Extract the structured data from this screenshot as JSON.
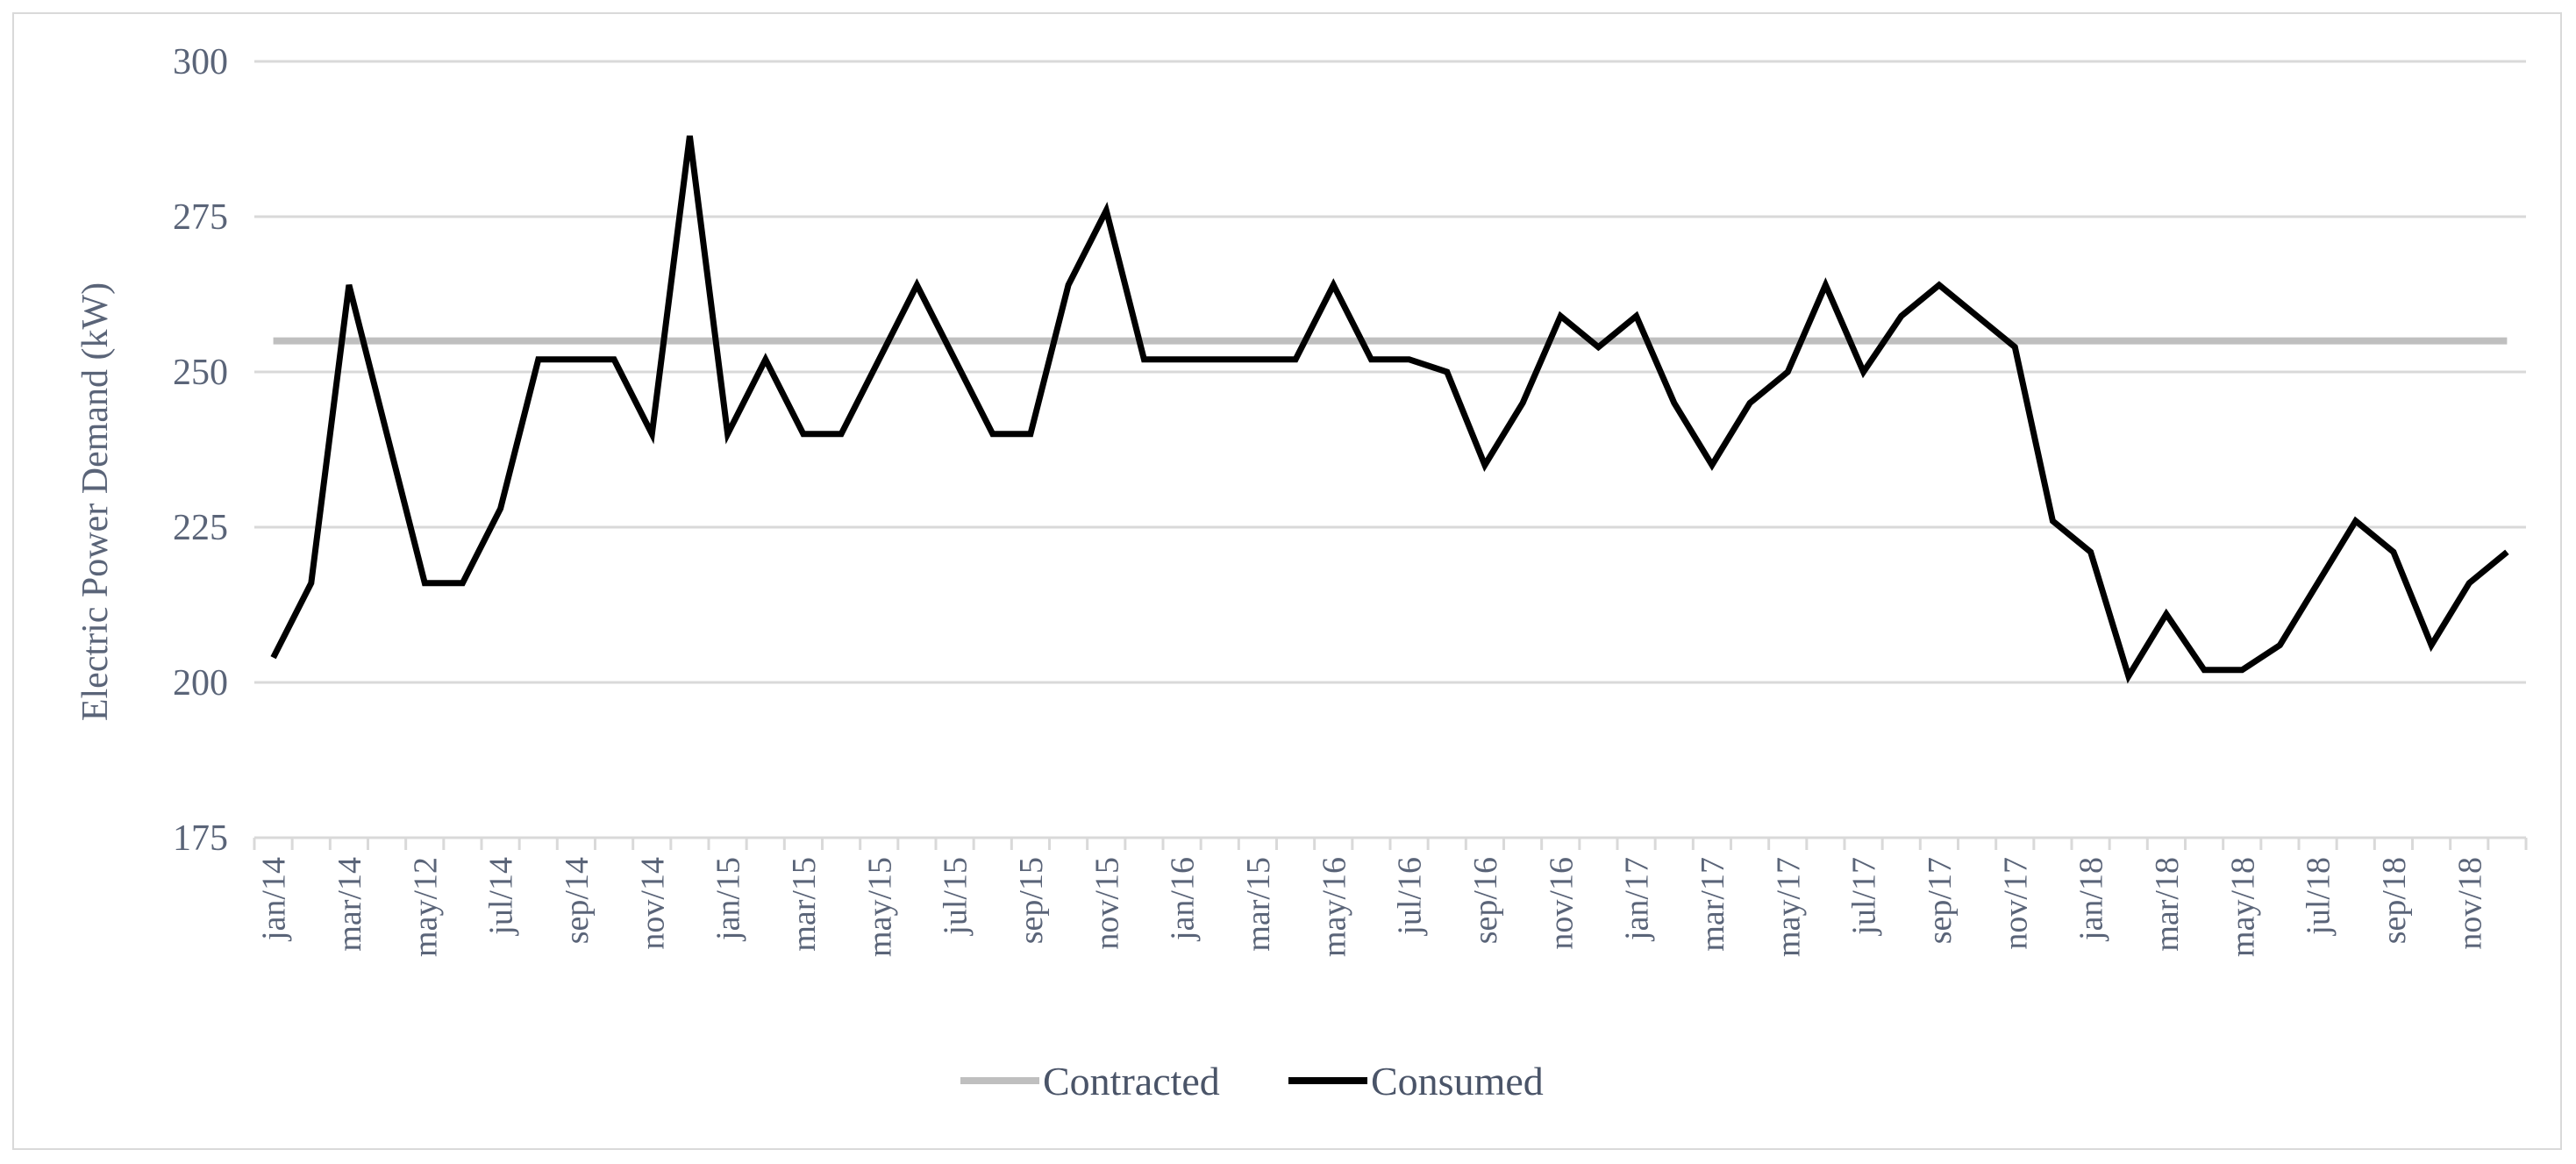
{
  "chart_data": {
    "type": "line",
    "title": "",
    "ylabel": "Electric Power Demand (kW)",
    "xlabel": "",
    "ylim": [
      175,
      300
    ],
    "yticks": [
      175,
      200,
      225,
      250,
      275,
      300
    ],
    "grid": true,
    "legend_position": "bottom",
    "x_count": 60,
    "x_tick_labels": [
      "jan/14",
      "mar/14",
      "may/12",
      "jul/14",
      "sep/14",
      "nov/14",
      "jan/15",
      "mar/15",
      "may/15",
      "jul/15",
      "sep/15",
      "nov/15",
      "jan/16",
      "mar/15",
      "may/16",
      "jul/16",
      "sep/16",
      "nov/16",
      "jan/17",
      "mar/17",
      "may/17",
      "jul/17",
      "sep/17",
      "nov/17",
      "jan/18",
      "mar/18",
      "may/18",
      "jul/18",
      "sep/18",
      "nov/18"
    ],
    "series": [
      {
        "name": "Contracted",
        "color": "#bfbfbf",
        "values": [
          255,
          255,
          255,
          255,
          255,
          255,
          255,
          255,
          255,
          255,
          255,
          255,
          255,
          255,
          255,
          255,
          255,
          255,
          255,
          255,
          255,
          255,
          255,
          255,
          255,
          255,
          255,
          255,
          255,
          255,
          255,
          255,
          255,
          255,
          255,
          255,
          255,
          255,
          255,
          255,
          255,
          255,
          255,
          255,
          255,
          255,
          255,
          255,
          255,
          255,
          255,
          255,
          255,
          255,
          255,
          255,
          255,
          255,
          255,
          255
        ]
      },
      {
        "name": "Consumed",
        "color": "#000000",
        "values": [
          204,
          216,
          264,
          240,
          216,
          216,
          228,
          252,
          252,
          252,
          240,
          288,
          240,
          252,
          240,
          240,
          252,
          264,
          252,
          240,
          240,
          264,
          276,
          252,
          252,
          252,
          252,
          252,
          264,
          252,
          252,
          250,
          235,
          245,
          259,
          254,
          259,
          245,
          235,
          245,
          250,
          264,
          250,
          259,
          264,
          259,
          254,
          226,
          221,
          201,
          211,
          202,
          202,
          206,
          216,
          226,
          221,
          206,
          216,
          221
        ]
      }
    ]
  }
}
